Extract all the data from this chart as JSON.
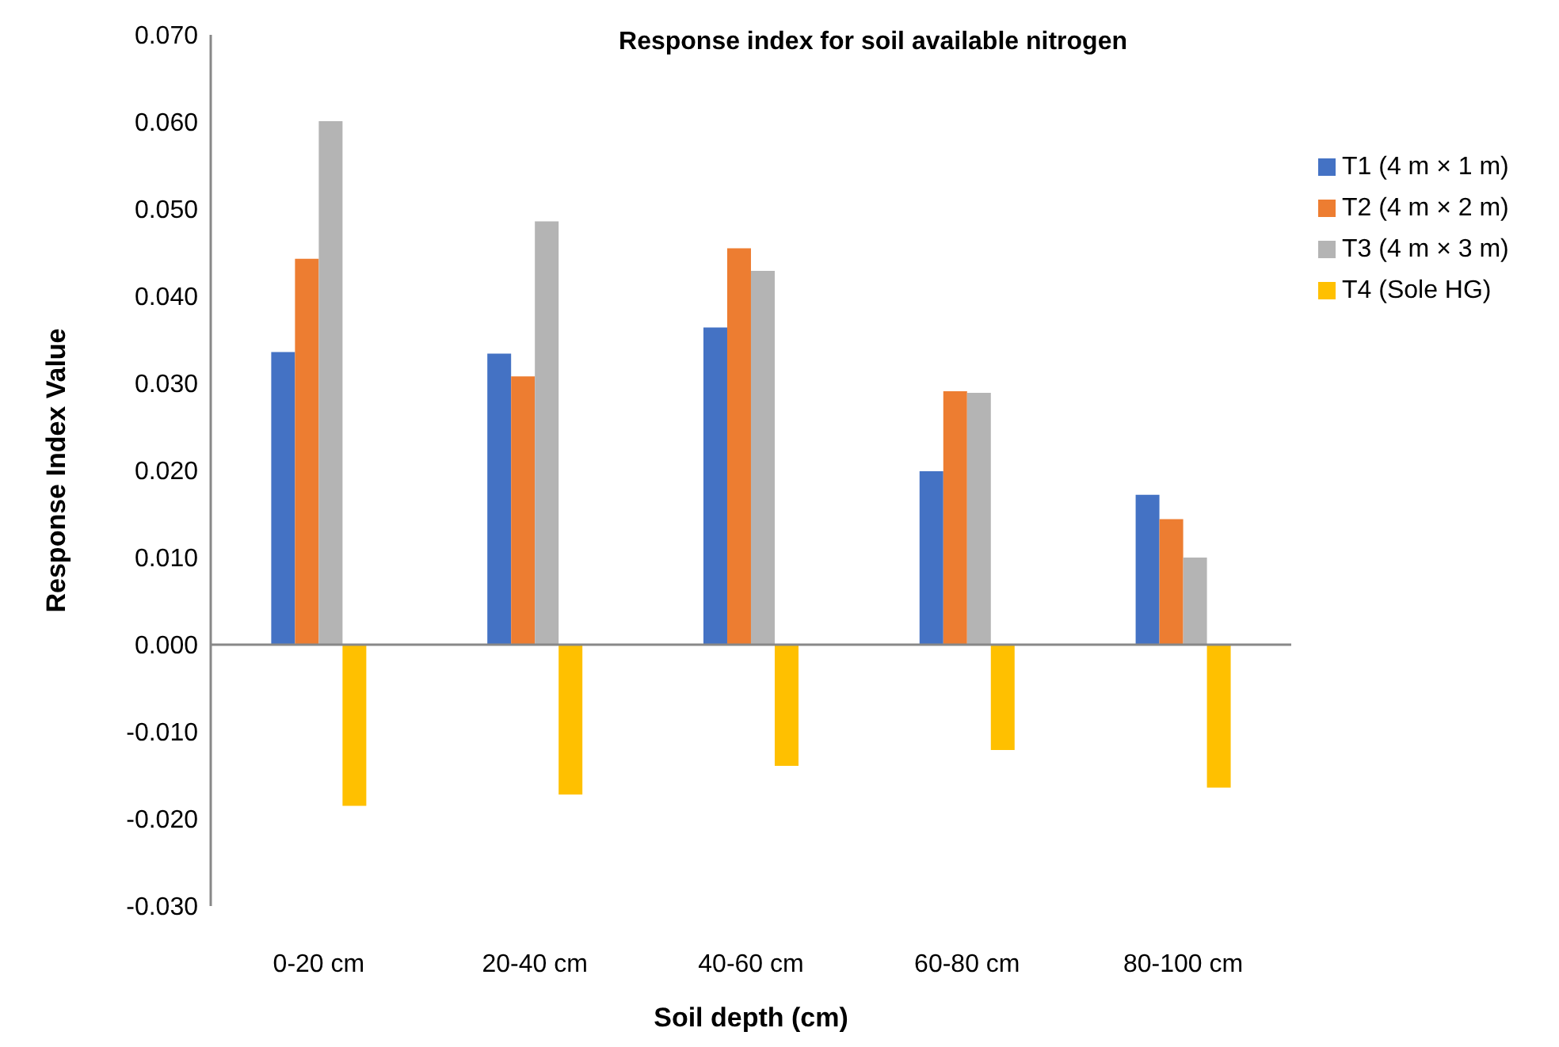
{
  "chart_data": {
    "type": "bar",
    "title": "Response index for soil available nitrogen",
    "xlabel": "Soil depth (cm)",
    "ylabel": "Response Index Value",
    "categories": [
      "0-20 cm",
      "20-40 cm",
      "40-60 cm",
      "60-80 cm",
      "80-100 cm"
    ],
    "series": [
      {
        "name": "T1 (4 m × 1 m)",
        "color": "#4472c4",
        "values": [
          0.0336,
          0.0334,
          0.0364,
          0.0199,
          0.0172
        ]
      },
      {
        "name": "T2 (4 m × 2 m)",
        "color": "#ed7d31",
        "values": [
          0.0443,
          0.0308,
          0.0455,
          0.0291,
          0.0144
        ]
      },
      {
        "name": "T3 (4 m × 3 m)",
        "color": "#b4b4b4",
        "values": [
          0.0601,
          0.0486,
          0.0429,
          0.0289,
          0.01
        ]
      },
      {
        "name": "T4 (Sole HG)",
        "color": "#ffc000",
        "values": [
          -0.0185,
          -0.0172,
          -0.0139,
          -0.0121,
          -0.0164
        ]
      }
    ],
    "ylim": [
      -0.03,
      0.07
    ],
    "yticks": [
      {
        "value": -0.03,
        "label": "-0.030"
      },
      {
        "value": -0.02,
        "label": "-0.020"
      },
      {
        "value": -0.01,
        "label": "-0.010"
      },
      {
        "value": 0,
        "label": "0.000"
      },
      {
        "value": 0.01,
        "label": "0.010"
      },
      {
        "value": 0.02,
        "label": "0.020"
      },
      {
        "value": 0.03,
        "label": "0.030"
      },
      {
        "value": 0.04,
        "label": "0.040"
      },
      {
        "value": 0.05,
        "label": "0.050"
      },
      {
        "value": 0.06,
        "label": "0.060"
      },
      {
        "value": 0.07,
        "label": "0.070"
      }
    ],
    "legend": "right"
  }
}
